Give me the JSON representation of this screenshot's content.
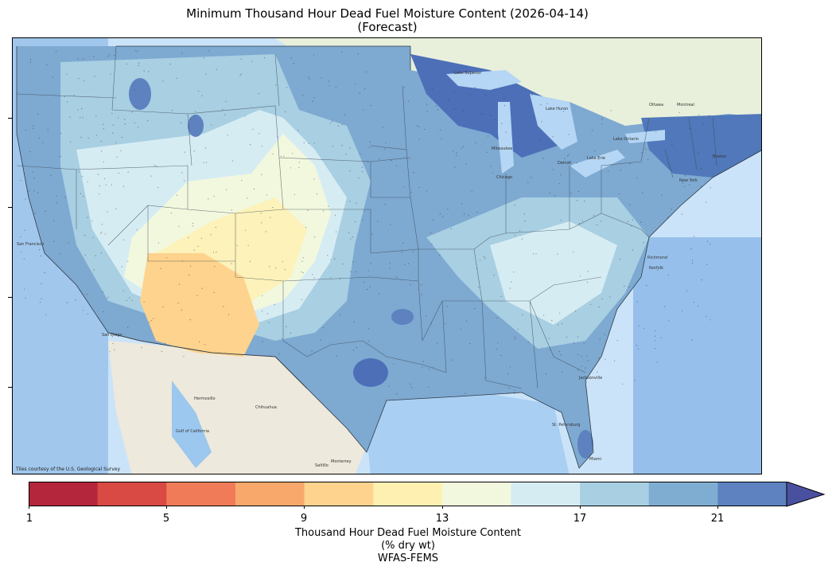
{
  "title_line1": "Minimum Thousand Hour Dead Fuel Moisture Content (2026-04-14)",
  "title_line2": "(Forecast)",
  "credit": "Tiles courtesy of the U.S. Geological Survey",
  "colorbar": {
    "ticks": [
      "1",
      "5",
      "9",
      "13",
      "17",
      "21"
    ],
    "colors": [
      "#b3263c",
      "#d94a44",
      "#ef7b58",
      "#f9a86b",
      "#fdd38d",
      "#fef0b0",
      "#f2f8de",
      "#d6ecf3",
      "#a8cfe2",
      "#7fadd1",
      "#5d82bf"
    ],
    "extend_color": "#4a50a0",
    "caption_line1": "Thousand Hour Dead Fuel Moisture Content",
    "caption_line2": "(% dry wt)",
    "caption_line3": "WFAS-FEMS"
  },
  "map_labels": {
    "hermosillo": "Hermosillo",
    "chihuahua": "Chihuahua",
    "monterrey": "Monterrey",
    "saltillo": "Saltillo",
    "gulf_of_california": "Gulf of California",
    "san_francisco": "San Francisco",
    "milwaukee": "Milwaukee",
    "chicago": "Chicago",
    "detroit": "Detroit",
    "ottawa": "Ottawa",
    "montreal": "Montreal",
    "lake_superior": "Lake Superior",
    "lake_huron": "Lake Huron",
    "lake_ontario": "Lake Ontario",
    "lake_erie": "Lake Erie",
    "boston": "Boston",
    "new_york": "New York",
    "richmond": "Richmond",
    "norfolk": "Norfolk",
    "jacksonville": "Jacksonville",
    "st_petersburg": "St. Petersburg",
    "miami": "Miami",
    "san_diego": "San Diego"
  }
}
